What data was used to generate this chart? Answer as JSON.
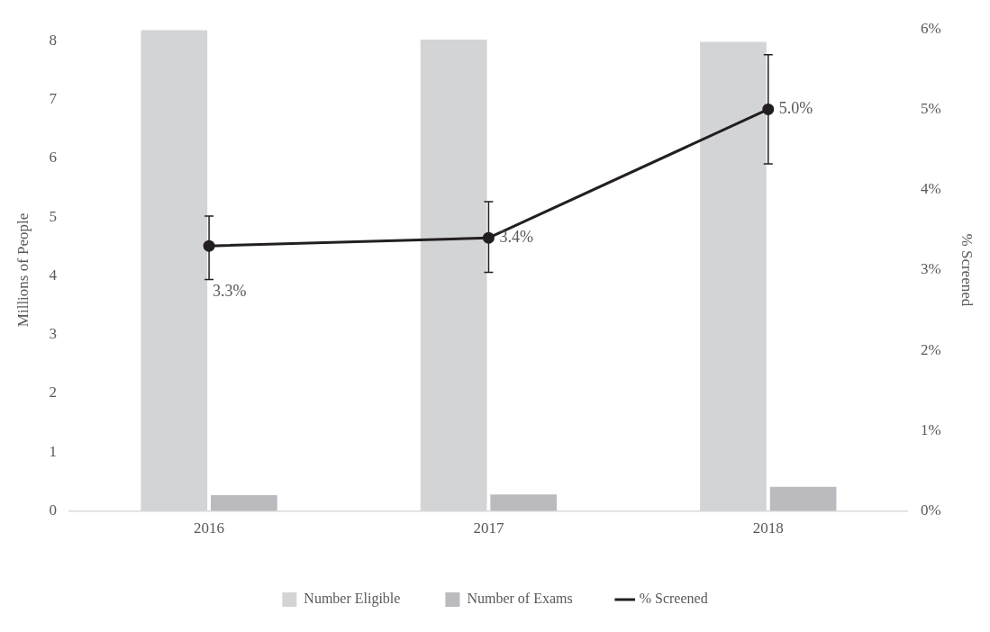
{
  "chart_data": {
    "type": "bar",
    "categories": [
      "2016",
      "2017",
      "2018"
    ],
    "ylabel": "Millions of People",
    "y2label": "% Screened",
    "ylim": [
      0,
      8.2
    ],
    "yticks": [
      0,
      1,
      2,
      3,
      4,
      5,
      6,
      7,
      8
    ],
    "y2lim": [
      0,
      6
    ],
    "y2ticks": [
      {
        "value": 0,
        "label": "0%"
      },
      {
        "value": 1,
        "label": "1%"
      },
      {
        "value": 2,
        "label": "2%"
      },
      {
        "value": 3,
        "label": "3%"
      },
      {
        "value": 4,
        "label": "4%"
      },
      {
        "value": 5,
        "label": "5%"
      },
      {
        "value": 6,
        "label": "6%"
      }
    ],
    "series": [
      {
        "name": "Number Eligible",
        "color": "#d3d4d6",
        "values": [
          8.18,
          8.02,
          7.98
        ]
      },
      {
        "name": "Number of Exams",
        "color": "#bbbbbf",
        "values": [
          0.27,
          0.28,
          0.41
        ]
      },
      {
        "name": "% Screened",
        "type": "line",
        "axis": "y2",
        "color": "#231f20",
        "values": [
          3.3,
          3.4,
          5.0
        ],
        "errors": [
          [
            2.88,
            3.67
          ],
          [
            2.97,
            3.85
          ],
          [
            4.32,
            5.68
          ]
        ],
        "value_labels": [
          "3.3%",
          "3.4%",
          "5.0%"
        ],
        "marker": "circle",
        "line_style": "solid"
      }
    ],
    "legend": "bottom",
    "grid": false
  }
}
